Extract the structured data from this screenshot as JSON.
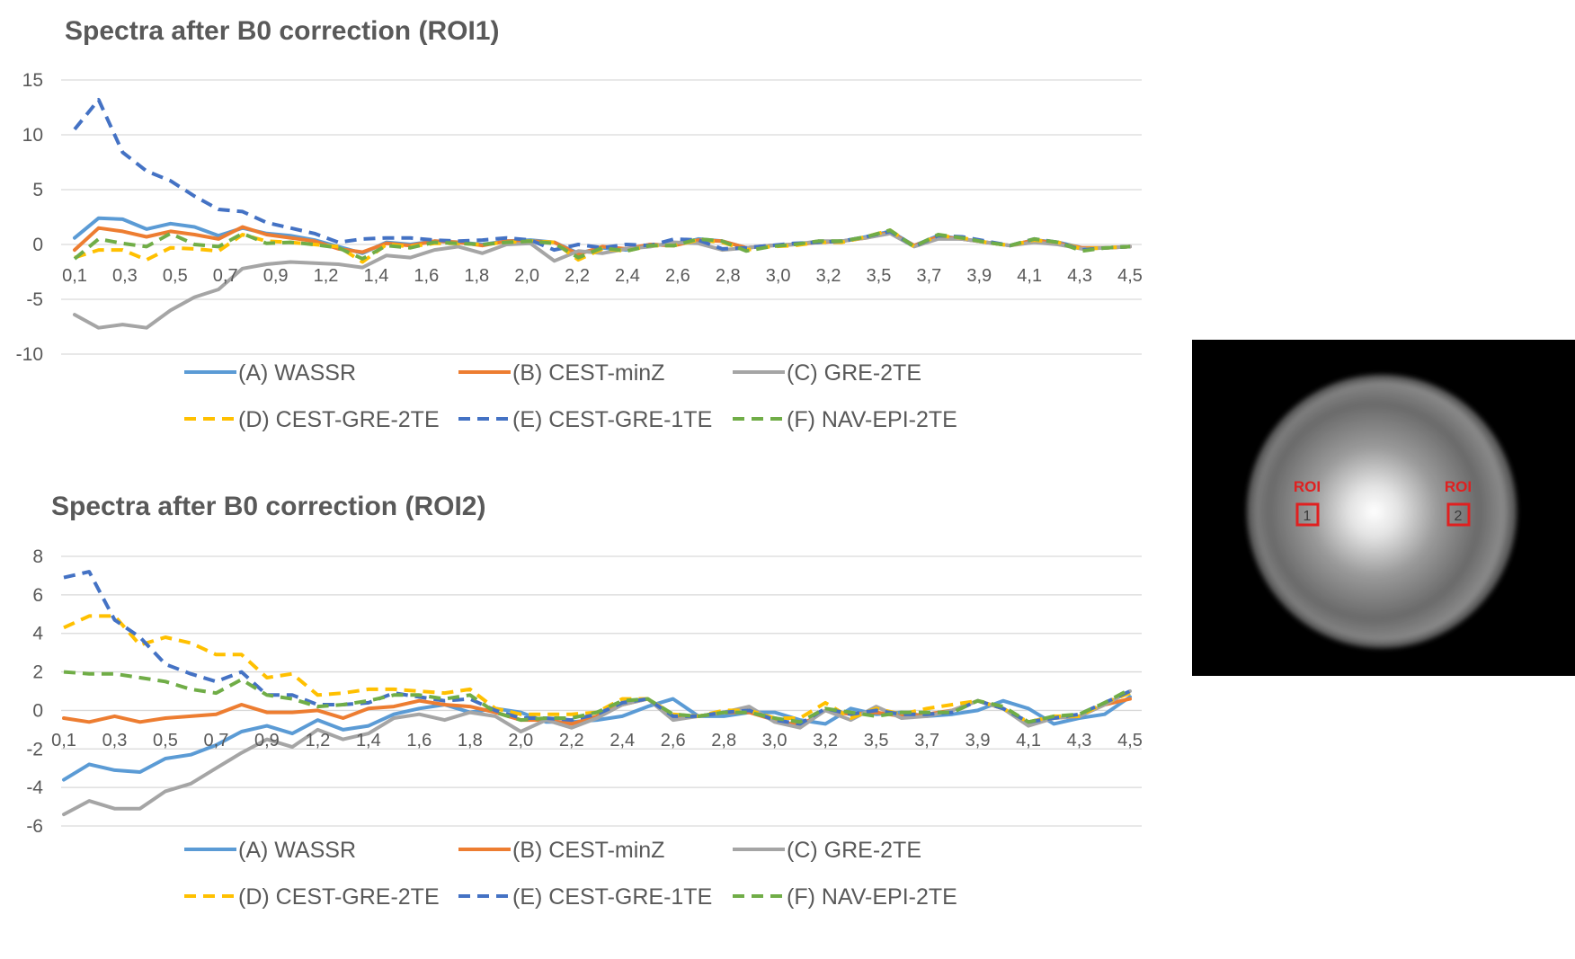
{
  "chart_data": [
    {
      "type": "line",
      "title": "Spectra after B0 correction (ROI1)",
      "xlabel": "",
      "ylabel": "",
      "ylim": [
        -10,
        15
      ],
      "yticks": [
        15,
        10,
        5,
        0,
        -5,
        -10
      ],
      "ytick_labels": [
        "15",
        "10",
        "5",
        "0",
        "-5",
        "-10"
      ],
      "x_tick_labels": [
        "0,1",
        "0,3",
        "0,5",
        "0,7",
        "0,9",
        "1,2",
        "1,4",
        "1,6",
        "1,8",
        "2,0",
        "2,2",
        "2,4",
        "2,6",
        "2,8",
        "3,0",
        "3,2",
        "3,5",
        "3,7",
        "3,9",
        "4,1",
        "4,3",
        "4,5"
      ],
      "grid": true,
      "legend_position": "bottom",
      "series": [
        {
          "name": "(A) WASSR",
          "color": "#5B9BD5",
          "dash": "solid",
          "values": [
            0.6,
            2.4,
            2.3,
            1.4,
            1.9,
            1.6,
            0.8,
            1.5,
            1.0,
            0.8,
            0.4,
            -0.2,
            -0.8,
            0.2,
            0.0,
            0.3,
            0.2,
            0.0,
            0.3,
            0.4,
            0.2,
            -0.8,
            -0.3,
            -0.5,
            0.0,
            -0.1,
            0.5,
            0.3,
            -0.3,
            -0.1,
            0.0,
            0.2,
            0.3,
            0.7,
            1.2,
            -0.1,
            0.8,
            0.5,
            0.2,
            -0.1,
            0.4,
            0.2,
            -0.3,
            -0.3,
            -0.2
          ]
        },
        {
          "name": "(B) CEST-minZ",
          "color": "#ED7D31",
          "dash": "solid",
          "values": [
            -0.5,
            1.5,
            1.2,
            0.7,
            1.2,
            0.9,
            0.5,
            1.6,
            0.9,
            0.6,
            0.3,
            -0.4,
            -0.7,
            0.1,
            -0.1,
            0.3,
            0.2,
            -0.1,
            0.3,
            0.3,
            0.2,
            -0.9,
            -0.2,
            -0.4,
            0.0,
            -0.1,
            0.4,
            0.3,
            -0.3,
            -0.1,
            0.0,
            0.2,
            0.3,
            0.6,
            1.1,
            -0.1,
            0.7,
            0.5,
            0.2,
            -0.1,
            0.4,
            0.1,
            -0.3,
            -0.3,
            -0.2
          ]
        },
        {
          "name": "(C) GRE-2TE",
          "color": "#A5A5A5",
          "dash": "solid",
          "values": [
            -6.4,
            -7.6,
            -7.3,
            -7.6,
            -6.0,
            -4.8,
            -4.1,
            -2.2,
            -1.8,
            -1.6,
            -1.7,
            -1.8,
            -2.1,
            -1.0,
            -1.2,
            -0.5,
            -0.2,
            -0.8,
            0.0,
            0.1,
            -1.5,
            -0.6,
            -0.8,
            -0.4,
            -0.2,
            0.2,
            0.1,
            -0.5,
            -0.3,
            -0.1,
            0.0,
            0.3,
            0.3,
            0.6,
            1.0,
            -0.2,
            0.5,
            0.5,
            0.2,
            -0.1,
            0.2,
            0.0,
            -0.4,
            -0.3,
            -0.2
          ]
        },
        {
          "name": "(D) CEST-GRE-2TE",
          "color": "#FFC000",
          "dash": "dashed",
          "values": [
            -1.2,
            -0.5,
            -0.5,
            -1.4,
            -0.3,
            -0.4,
            -0.6,
            0.9,
            0.3,
            0.2,
            0.0,
            -0.2,
            -1.6,
            0.0,
            -0.2,
            0.1,
            0.1,
            0.0,
            0.2,
            0.3,
            0.2,
            -1.4,
            -0.4,
            -0.6,
            -0.1,
            -0.1,
            0.4,
            0.2,
            -0.5,
            -0.2,
            -0.1,
            0.2,
            0.2,
            0.7,
            1.3,
            -0.2,
            0.8,
            0.6,
            0.2,
            -0.1,
            0.4,
            0.2,
            -0.4,
            -0.3,
            -0.2
          ]
        },
        {
          "name": "(E) CEST-GRE-1TE",
          "color": "#4472C4",
          "dash": "dashed",
          "values": [
            10.5,
            13.2,
            8.4,
            6.7,
            5.8,
            4.4,
            3.2,
            3.0,
            2.0,
            1.5,
            1.0,
            0.2,
            0.5,
            0.6,
            0.6,
            0.4,
            0.3,
            0.4,
            0.6,
            0.4,
            -0.5,
            0.0,
            -0.3,
            0.0,
            -0.1,
            0.5,
            0.4,
            -0.4,
            -0.3,
            -0.1,
            0.1,
            0.2,
            0.3,
            0.7,
            1.2,
            -0.2,
            0.8,
            0.7,
            0.3,
            -0.1,
            0.5,
            0.2,
            -0.5,
            -0.3,
            -0.2
          ]
        },
        {
          "name": "(F) NAV-EPI-2TE",
          "color": "#70AD47",
          "dash": "dashed",
          "values": [
            -1.3,
            0.5,
            0.1,
            -0.2,
            1.0,
            0.0,
            -0.2,
            1.0,
            0.1,
            0.2,
            0.0,
            -0.3,
            -1.3,
            -0.1,
            -0.3,
            0.2,
            0.1,
            0.0,
            0.2,
            0.3,
            0.1,
            -1.2,
            -0.3,
            -0.6,
            -0.1,
            -0.1,
            0.5,
            0.3,
            -0.6,
            -0.2,
            0.0,
            0.3,
            0.3,
            0.7,
            1.3,
            -0.2,
            0.9,
            0.6,
            0.2,
            -0.1,
            0.5,
            0.2,
            -0.6,
            -0.3,
            -0.2
          ]
        }
      ]
    },
    {
      "type": "line",
      "title": "Spectra after B0 correction (ROI2)",
      "xlabel": "",
      "ylabel": "",
      "ylim": [
        -6,
        8
      ],
      "yticks": [
        8,
        6,
        4,
        2,
        0,
        -2,
        -4,
        -6
      ],
      "ytick_labels": [
        "8",
        "6",
        "4",
        "2",
        "0",
        "-2",
        "-4",
        "-6"
      ],
      "x_tick_labels": [
        "0,1",
        "0,3",
        "0,5",
        "0,7",
        "0,9",
        "1,2",
        "1,4",
        "1,6",
        "1,8",
        "2,0",
        "2,2",
        "2,4",
        "2,6",
        "2,8",
        "3,0",
        "3,2",
        "3,5",
        "3,7",
        "3,9",
        "4,1",
        "4,3",
        "4,5"
      ],
      "grid": true,
      "legend_position": "bottom",
      "series": [
        {
          "name": "(A) WASSR",
          "color": "#5B9BD5",
          "dash": "solid",
          "values": [
            -3.6,
            -2.8,
            -3.1,
            -3.2,
            -2.5,
            -2.3,
            -1.8,
            -1.1,
            -0.8,
            -1.2,
            -0.5,
            -1.0,
            -0.8,
            -0.2,
            0.1,
            0.3,
            -0.1,
            0.1,
            -0.1,
            -0.6,
            -0.6,
            -0.5,
            -0.3,
            0.2,
            0.6,
            -0.3,
            -0.3,
            -0.1,
            -0.1,
            -0.5,
            -0.7,
            0.1,
            -0.2,
            -0.1,
            -0.3,
            -0.2,
            0.0,
            0.5,
            0.1,
            -0.7,
            -0.4,
            -0.2,
            0.7
          ]
        },
        {
          "name": "(B) CEST-minZ",
          "color": "#ED7D31",
          "dash": "solid",
          "values": [
            -0.4,
            -0.6,
            -0.3,
            -0.6,
            -0.4,
            -0.3,
            -0.2,
            0.3,
            -0.1,
            -0.1,
            0.0,
            -0.4,
            0.1,
            0.2,
            0.5,
            0.3,
            0.2,
            -0.1,
            -0.5,
            -0.5,
            -0.7,
            -0.3,
            0.3,
            0.6,
            -0.3,
            -0.3,
            -0.1,
            -0.1,
            -0.5,
            -0.8,
            0.0,
            -0.2,
            -0.1,
            -0.3,
            -0.2,
            0.0,
            0.5,
            0.1,
            -0.7,
            -0.4,
            -0.3,
            0.3,
            0.6
          ]
        },
        {
          "name": "(C) GRE-2TE",
          "color": "#A5A5A5",
          "dash": "solid",
          "values": [
            -5.4,
            -4.7,
            -5.1,
            -5.1,
            -4.2,
            -3.8,
            -3.0,
            -2.2,
            -1.5,
            -1.9,
            -1.0,
            -1.5,
            -1.2,
            -0.4,
            -0.2,
            -0.5,
            -0.1,
            -0.3,
            -1.1,
            -0.5,
            -0.9,
            -0.4,
            0.3,
            0.6,
            -0.5,
            -0.3,
            -0.1,
            0.2,
            -0.6,
            -0.9,
            0.0,
            -0.5,
            0.2,
            -0.4,
            -0.3,
            0.0,
            0.5,
            0.1,
            -0.8,
            -0.4,
            -0.3,
            0.3,
            1.0
          ]
        },
        {
          "name": "(D) CEST-GRE-2TE",
          "color": "#FFC000",
          "dash": "dashed",
          "values": [
            4.3,
            4.9,
            4.9,
            3.4,
            3.8,
            3.5,
            2.9,
            2.9,
            1.7,
            1.9,
            0.8,
            0.9,
            1.1,
            1.1,
            1.0,
            0.9,
            1.1,
            0.1,
            -0.2,
            -0.2,
            -0.2,
            -0.1,
            0.6,
            0.6,
            -0.2,
            -0.3,
            0.0,
            0.0,
            -0.4,
            -0.4,
            0.4,
            -0.4,
            0.1,
            -0.2,
            0.1,
            0.3,
            0.5,
            0.1,
            -0.6,
            -0.3,
            -0.3,
            0.4,
            0.9
          ]
        },
        {
          "name": "(E) CEST-GRE-1TE",
          "color": "#4472C4",
          "dash": "dashed",
          "values": [
            6.9,
            7.2,
            4.7,
            3.8,
            2.4,
            1.9,
            1.5,
            2.0,
            0.8,
            0.8,
            0.3,
            0.3,
            0.4,
            0.9,
            0.7,
            0.5,
            0.6,
            0.0,
            -0.4,
            -0.4,
            -0.5,
            -0.2,
            0.4,
            0.6,
            -0.3,
            -0.3,
            -0.1,
            0.0,
            -0.5,
            -0.7,
            0.1,
            -0.2,
            0.0,
            -0.2,
            -0.2,
            -0.1,
            0.5,
            0.1,
            -0.6,
            -0.4,
            -0.2,
            0.4,
            1.0
          ]
        },
        {
          "name": "(F) NAV-EPI-2TE",
          "color": "#70AD47",
          "dash": "dashed",
          "values": [
            2.0,
            1.9,
            1.9,
            1.7,
            1.5,
            1.1,
            0.9,
            1.6,
            0.8,
            0.6,
            0.2,
            0.3,
            0.5,
            0.8,
            0.8,
            0.6,
            0.8,
            -0.1,
            -0.5,
            -0.4,
            -0.4,
            -0.1,
            0.5,
            0.6,
            -0.2,
            -0.3,
            -0.1,
            -0.1,
            -0.4,
            -0.6,
            0.1,
            -0.1,
            -0.3,
            -0.1,
            -0.1,
            -0.1,
            0.5,
            0.2,
            -0.6,
            -0.3,
            -0.2,
            0.4,
            1.1
          ]
        }
      ]
    }
  ],
  "image_panel": {
    "roi_labels": [
      {
        "title": "ROI",
        "number": "1"
      },
      {
        "title": "ROI",
        "number": "2"
      }
    ],
    "roi_color": "#E02020"
  }
}
